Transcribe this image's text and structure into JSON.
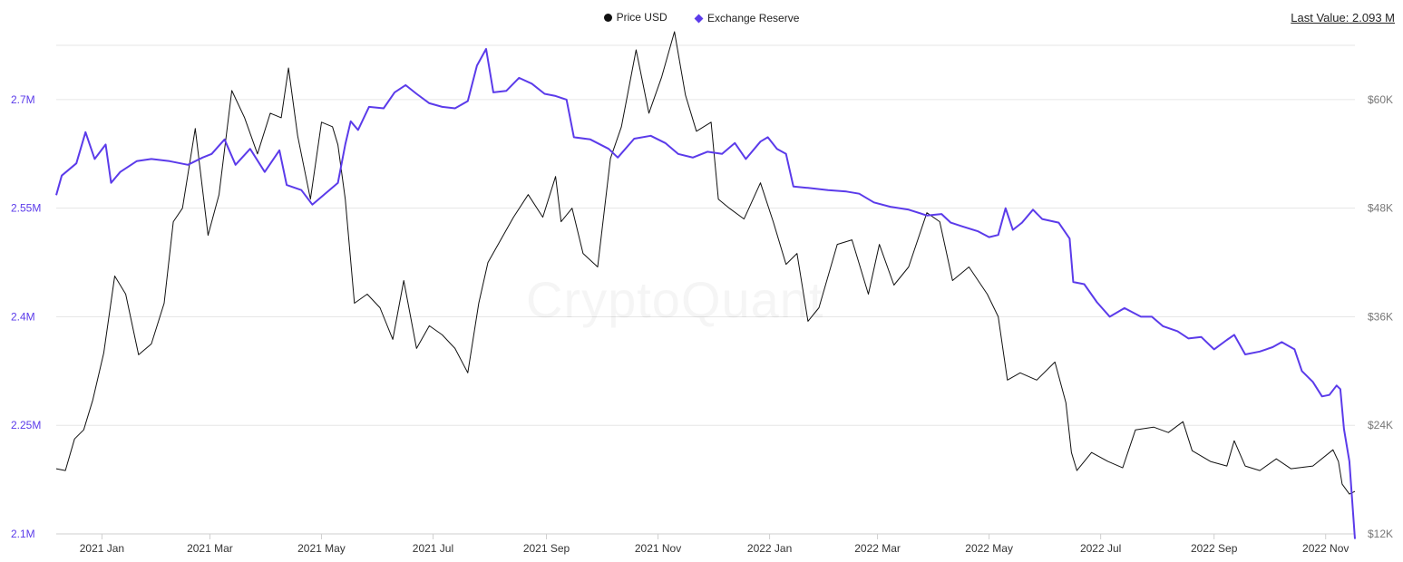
{
  "legend": {
    "price_label": "Price USD",
    "reserve_label": "Exchange Reserve"
  },
  "last_value": {
    "label": "Last Value:",
    "value": "2.093 M"
  },
  "watermark": "CryptoQuant",
  "colors": {
    "price": "#111111",
    "reserve": "#5b3bea",
    "grid": "#e6e6e6",
    "left_axis_text": "#5b3bea",
    "right_axis_text": "#777777"
  },
  "chart_data": {
    "type": "line",
    "x_tick_labels": [
      "2021 Jan",
      "2021 Mar",
      "2021 May",
      "2021 Jul",
      "2021 Sep",
      "2021 Nov",
      "2022 Jan",
      "2022 Mar",
      "2022 May",
      "2022 Jul",
      "2022 Sep",
      "2022 Nov"
    ],
    "x_tick_dates": [
      "2021-01-01",
      "2021-03-01",
      "2021-05-01",
      "2021-07-01",
      "2021-09-01",
      "2021-11-01",
      "2022-01-01",
      "2022-03-01",
      "2022-05-01",
      "2022-07-01",
      "2022-09-01",
      "2022-11-01"
    ],
    "x_range": [
      "2020-12-07",
      "2022-11-17"
    ],
    "left_axis": {
      "min": 2100000,
      "max": 2775000,
      "ticks": [
        2100000,
        2250000,
        2400000,
        2550000,
        2700000
      ],
      "tick_labels": [
        "2.1M",
        "2.25M",
        "2.4M",
        "2.55M",
        "2.7M"
      ]
    },
    "right_axis": {
      "min": 12000,
      "max": 66000,
      "ticks": [
        12000,
        24000,
        36000,
        48000,
        60000
      ],
      "tick_labels": [
        "$12K",
        "$24K",
        "$36K",
        "$48K",
        "$60K"
      ]
    },
    "grid": true,
    "legend_position": "top-center",
    "series": [
      {
        "name": "Price USD",
        "axis": "right",
        "points": [
          [
            "2020-12-07",
            19200
          ],
          [
            "2020-12-12",
            19000
          ],
          [
            "2020-12-17",
            22500
          ],
          [
            "2020-12-22",
            23500
          ],
          [
            "2020-12-27",
            26800
          ],
          [
            "2021-01-02",
            32000
          ],
          [
            "2021-01-08",
            40500
          ],
          [
            "2021-01-14",
            38500
          ],
          [
            "2021-01-21",
            31800
          ],
          [
            "2021-01-28",
            33000
          ],
          [
            "2021-02-04",
            37500
          ],
          [
            "2021-02-09",
            46500
          ],
          [
            "2021-02-14",
            48000
          ],
          [
            "2021-02-21",
            56800
          ],
          [
            "2021-02-28",
            45000
          ],
          [
            "2021-03-06",
            49500
          ],
          [
            "2021-03-13",
            61000
          ],
          [
            "2021-03-20",
            58000
          ],
          [
            "2021-03-27",
            54000
          ],
          [
            "2021-04-03",
            58500
          ],
          [
            "2021-04-09",
            58000
          ],
          [
            "2021-04-13",
            63500
          ],
          [
            "2021-04-18",
            56000
          ],
          [
            "2021-04-25",
            49000
          ],
          [
            "2021-05-01",
            57500
          ],
          [
            "2021-05-07",
            57000
          ],
          [
            "2021-05-10",
            55000
          ],
          [
            "2021-05-14",
            49000
          ],
          [
            "2021-05-19",
            37500
          ],
          [
            "2021-05-26",
            38500
          ],
          [
            "2021-06-02",
            37000
          ],
          [
            "2021-06-09",
            33500
          ],
          [
            "2021-06-15",
            40000
          ],
          [
            "2021-06-22",
            32500
          ],
          [
            "2021-06-29",
            35000
          ],
          [
            "2021-07-06",
            34000
          ],
          [
            "2021-07-13",
            32500
          ],
          [
            "2021-07-20",
            29800
          ],
          [
            "2021-07-26",
            37500
          ],
          [
            "2021-07-31",
            42000
          ],
          [
            "2021-08-07",
            44500
          ],
          [
            "2021-08-14",
            47000
          ],
          [
            "2021-08-22",
            49500
          ],
          [
            "2021-08-30",
            47000
          ],
          [
            "2021-09-06",
            51500
          ],
          [
            "2021-09-09",
            46500
          ],
          [
            "2021-09-15",
            48000
          ],
          [
            "2021-09-21",
            43000
          ],
          [
            "2021-09-29",
            41500
          ],
          [
            "2021-10-06",
            53500
          ],
          [
            "2021-10-12",
            57000
          ],
          [
            "2021-10-20",
            65500
          ],
          [
            "2021-10-27",
            58500
          ],
          [
            "2021-11-03",
            62500
          ],
          [
            "2021-11-10",
            67500
          ],
          [
            "2021-11-16",
            60500
          ],
          [
            "2021-11-22",
            56500
          ],
          [
            "2021-11-30",
            57500
          ],
          [
            "2021-12-04",
            49000
          ],
          [
            "2021-12-10",
            48000
          ],
          [
            "2021-12-18",
            46800
          ],
          [
            "2021-12-27",
            50800
          ],
          [
            "2022-01-03",
            46500
          ],
          [
            "2022-01-10",
            41800
          ],
          [
            "2022-01-16",
            43000
          ],
          [
            "2022-01-22",
            35500
          ],
          [
            "2022-01-28",
            37000
          ],
          [
            "2022-02-07",
            44000
          ],
          [
            "2022-02-15",
            44500
          ],
          [
            "2022-02-24",
            38500
          ],
          [
            "2022-03-02",
            44000
          ],
          [
            "2022-03-10",
            39500
          ],
          [
            "2022-03-18",
            41500
          ],
          [
            "2022-03-28",
            47500
          ],
          [
            "2022-04-04",
            46500
          ],
          [
            "2022-04-11",
            40000
          ],
          [
            "2022-04-20",
            41500
          ],
          [
            "2022-04-30",
            38500
          ],
          [
            "2022-05-06",
            36000
          ],
          [
            "2022-05-11",
            29000
          ],
          [
            "2022-05-18",
            29800
          ],
          [
            "2022-05-27",
            29000
          ],
          [
            "2022-06-06",
            31000
          ],
          [
            "2022-06-12",
            26500
          ],
          [
            "2022-06-15",
            21000
          ],
          [
            "2022-06-18",
            19000
          ],
          [
            "2022-06-26",
            21000
          ],
          [
            "2022-07-05",
            20000
          ],
          [
            "2022-07-13",
            19300
          ],
          [
            "2022-07-20",
            23500
          ],
          [
            "2022-07-30",
            23800
          ],
          [
            "2022-08-07",
            23200
          ],
          [
            "2022-08-15",
            24400
          ],
          [
            "2022-08-20",
            21200
          ],
          [
            "2022-08-30",
            20000
          ],
          [
            "2022-09-08",
            19500
          ],
          [
            "2022-09-12",
            22300
          ],
          [
            "2022-09-18",
            19500
          ],
          [
            "2022-09-26",
            19000
          ],
          [
            "2022-10-05",
            20300
          ],
          [
            "2022-10-13",
            19200
          ],
          [
            "2022-10-25",
            19500
          ],
          [
            "2022-11-05",
            21300
          ],
          [
            "2022-11-08",
            20000
          ],
          [
            "2022-11-10",
            17500
          ],
          [
            "2022-11-14",
            16400
          ],
          [
            "2022-11-17",
            16700
          ]
        ]
      },
      {
        "name": "Exchange Reserve",
        "axis": "left",
        "points": [
          [
            "2020-12-07",
            2568000
          ],
          [
            "2020-12-10",
            2595000
          ],
          [
            "2020-12-18",
            2612000
          ],
          [
            "2020-12-23",
            2655000
          ],
          [
            "2020-12-28",
            2618000
          ],
          [
            "2021-01-03",
            2638000
          ],
          [
            "2021-01-06",
            2585000
          ],
          [
            "2021-01-11",
            2600000
          ],
          [
            "2021-01-20",
            2615000
          ],
          [
            "2021-01-28",
            2618000
          ],
          [
            "2021-02-07",
            2615000
          ],
          [
            "2021-02-17",
            2610000
          ],
          [
            "2021-02-25",
            2620000
          ],
          [
            "2021-03-02",
            2625000
          ],
          [
            "2021-03-09",
            2645000
          ],
          [
            "2021-03-15",
            2610000
          ],
          [
            "2021-03-23",
            2632000
          ],
          [
            "2021-03-31",
            2600000
          ],
          [
            "2021-04-08",
            2630000
          ],
          [
            "2021-04-12",
            2582000
          ],
          [
            "2021-04-20",
            2575000
          ],
          [
            "2021-04-26",
            2555000
          ],
          [
            "2021-05-03",
            2570000
          ],
          [
            "2021-05-10",
            2585000
          ],
          [
            "2021-05-14",
            2638000
          ],
          [
            "2021-05-17",
            2670000
          ],
          [
            "2021-05-21",
            2658000
          ],
          [
            "2021-05-27",
            2690000
          ],
          [
            "2021-06-04",
            2688000
          ],
          [
            "2021-06-10",
            2710000
          ],
          [
            "2021-06-16",
            2720000
          ],
          [
            "2021-06-22",
            2708000
          ],
          [
            "2021-06-29",
            2695000
          ],
          [
            "2021-07-06",
            2690000
          ],
          [
            "2021-07-13",
            2688000
          ],
          [
            "2021-07-20",
            2698000
          ],
          [
            "2021-07-25",
            2747000
          ],
          [
            "2021-07-30",
            2770000
          ],
          [
            "2021-08-03",
            2710000
          ],
          [
            "2021-08-10",
            2712000
          ],
          [
            "2021-08-17",
            2730000
          ],
          [
            "2021-08-24",
            2722000
          ],
          [
            "2021-08-31",
            2708000
          ],
          [
            "2021-09-06",
            2705000
          ],
          [
            "2021-09-12",
            2700000
          ],
          [
            "2021-09-16",
            2648000
          ],
          [
            "2021-09-25",
            2645000
          ],
          [
            "2021-10-05",
            2632000
          ],
          [
            "2021-10-10",
            2620000
          ],
          [
            "2021-10-19",
            2646000
          ],
          [
            "2021-10-28",
            2650000
          ],
          [
            "2021-11-05",
            2640000
          ],
          [
            "2021-11-12",
            2625000
          ],
          [
            "2021-11-20",
            2620000
          ],
          [
            "2021-11-28",
            2628000
          ],
          [
            "2021-12-06",
            2625000
          ],
          [
            "2021-12-13",
            2640000
          ],
          [
            "2021-12-19",
            2618000
          ],
          [
            "2021-12-27",
            2642000
          ],
          [
            "2021-12-31",
            2648000
          ],
          [
            "2022-01-05",
            2632000
          ],
          [
            "2022-01-10",
            2625000
          ],
          [
            "2022-01-14",
            2580000
          ],
          [
            "2022-01-22",
            2578000
          ],
          [
            "2022-02-02",
            2575000
          ],
          [
            "2022-02-12",
            2573000
          ],
          [
            "2022-02-19",
            2570000
          ],
          [
            "2022-02-27",
            2558000
          ],
          [
            "2022-03-08",
            2552000
          ],
          [
            "2022-03-18",
            2548000
          ],
          [
            "2022-03-28",
            2540000
          ],
          [
            "2022-04-05",
            2542000
          ],
          [
            "2022-04-10",
            2530000
          ],
          [
            "2022-04-16",
            2525000
          ],
          [
            "2022-04-25",
            2518000
          ],
          [
            "2022-05-01",
            2510000
          ],
          [
            "2022-05-06",
            2513000
          ],
          [
            "2022-05-10",
            2550000
          ],
          [
            "2022-05-14",
            2520000
          ],
          [
            "2022-05-19",
            2530000
          ],
          [
            "2022-05-25",
            2548000
          ],
          [
            "2022-05-30",
            2535000
          ],
          [
            "2022-06-08",
            2530000
          ],
          [
            "2022-06-14",
            2508000
          ],
          [
            "2022-06-16",
            2448000
          ],
          [
            "2022-06-22",
            2445000
          ],
          [
            "2022-06-29",
            2420000
          ],
          [
            "2022-07-06",
            2400000
          ],
          [
            "2022-07-14",
            2412000
          ],
          [
            "2022-07-23",
            2400000
          ],
          [
            "2022-07-29",
            2400000
          ],
          [
            "2022-08-04",
            2387000
          ],
          [
            "2022-08-12",
            2380000
          ],
          [
            "2022-08-18",
            2370000
          ],
          [
            "2022-08-25",
            2372000
          ],
          [
            "2022-09-01",
            2355000
          ],
          [
            "2022-09-08",
            2368000
          ],
          [
            "2022-09-12",
            2375000
          ],
          [
            "2022-09-18",
            2348000
          ],
          [
            "2022-09-26",
            2352000
          ],
          [
            "2022-10-03",
            2358000
          ],
          [
            "2022-10-08",
            2365000
          ],
          [
            "2022-10-15",
            2355000
          ],
          [
            "2022-10-19",
            2325000
          ],
          [
            "2022-10-25",
            2310000
          ],
          [
            "2022-10-30",
            2290000
          ],
          [
            "2022-11-03",
            2292000
          ],
          [
            "2022-11-07",
            2305000
          ],
          [
            "2022-11-09",
            2300000
          ],
          [
            "2022-11-11",
            2245000
          ],
          [
            "2022-11-14",
            2200000
          ],
          [
            "2022-11-17",
            2093000
          ]
        ]
      }
    ]
  }
}
